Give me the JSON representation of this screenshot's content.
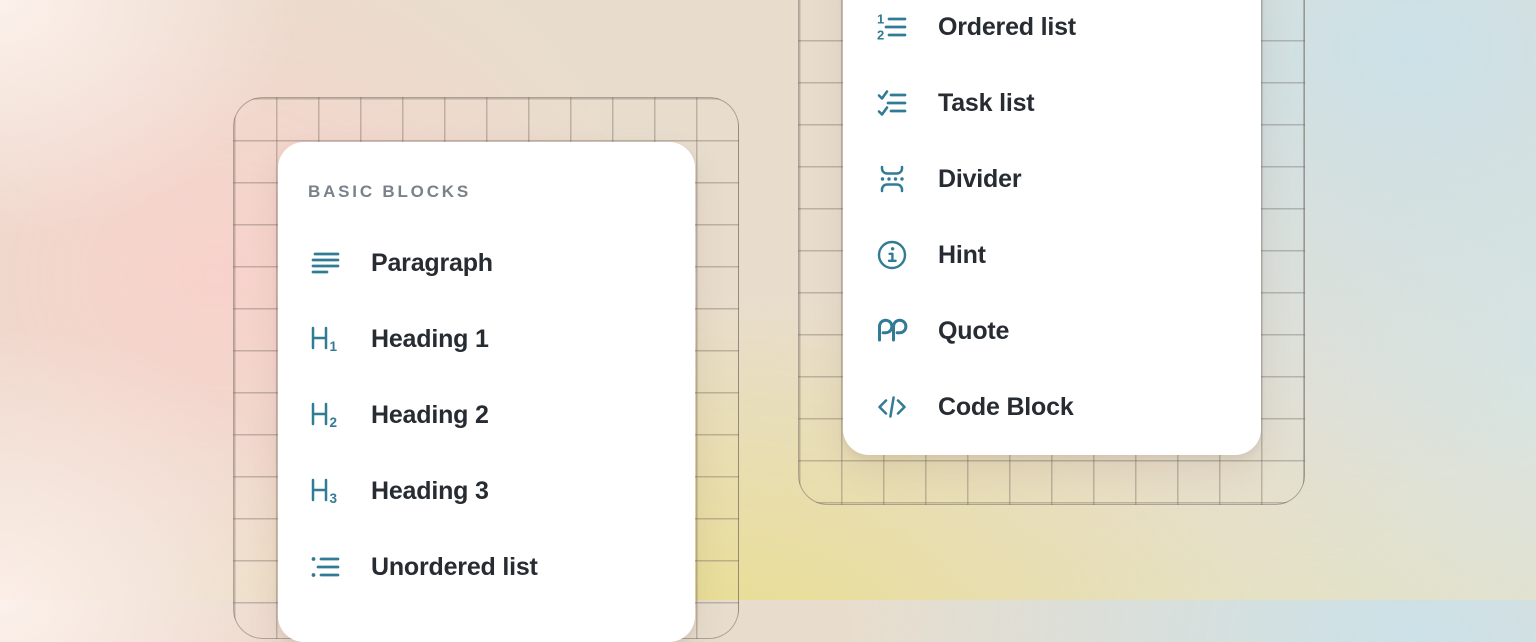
{
  "theme": {
    "accent_icon_color": "#317b95",
    "item_text_color": "#272c33",
    "section_label_color": "#7b818b",
    "card_background": "#ffffff",
    "background_pink": "#f8d2cc",
    "background_blue": "#cbe1e8",
    "background_yellow": "#e9de8a"
  },
  "left_card": {
    "section_label": "BASIC BLOCKS",
    "items": [
      {
        "label": "Paragraph",
        "icon": "paragraph-icon"
      },
      {
        "label": "Heading 1",
        "icon": "heading-1-icon"
      },
      {
        "label": "Heading 2",
        "icon": "heading-2-icon"
      },
      {
        "label": "Heading 3",
        "icon": "heading-3-icon"
      },
      {
        "label": "Unordered list",
        "icon": "unordered-list-icon"
      }
    ]
  },
  "right_card": {
    "items": [
      {
        "label": "Ordered list",
        "icon": "ordered-list-icon"
      },
      {
        "label": "Task list",
        "icon": "task-list-icon"
      },
      {
        "label": "Divider",
        "icon": "divider-icon"
      },
      {
        "label": "Hint",
        "icon": "hint-icon"
      },
      {
        "label": "Quote",
        "icon": "quote-icon"
      },
      {
        "label": "Code Block",
        "icon": "code-block-icon"
      }
    ]
  }
}
